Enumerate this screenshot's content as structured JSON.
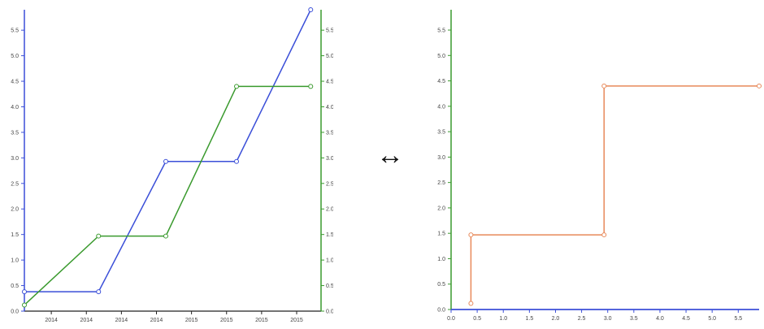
{
  "page": {
    "arrow_glyph": "↔"
  },
  "chart_data": [
    {
      "type": "line",
      "x_ticks": [
        "2014",
        "2014",
        "2014",
        "2014",
        "2015",
        "2015",
        "2015",
        "2015"
      ],
      "y_left": {
        "ylim": [
          0,
          5.9
        ],
        "ticks": [
          "0.0",
          "0.5",
          "1.0",
          "1.5",
          "2.0",
          "2.5",
          "3.0",
          "3.5",
          "4.0",
          "4.5",
          "5.0",
          "5.5"
        ],
        "color": "#3b4fd8"
      },
      "y_right": {
        "ylim": [
          0,
          5.9
        ],
        "ticks": [
          "0.0",
          "0.5",
          "1.0",
          "1.5",
          "2.0",
          "2.5",
          "3.0",
          "3.5",
          "4.0",
          "4.5",
          "5.0",
          "5.5"
        ],
        "color": "#3a9a2e"
      },
      "x_range": [
        0,
        8.6
      ],
      "grid": false,
      "series": [
        {
          "color": "#3b4fd8",
          "axis": "left",
          "points": [
            [
              0,
              0.38
            ],
            [
              2.15,
              0.38
            ],
            [
              4.1,
              2.93
            ],
            [
              6.15,
              2.93
            ],
            [
              8.3,
              5.9
            ]
          ]
        },
        {
          "color": "#3a9a2e",
          "axis": "right",
          "points": [
            [
              0,
              0.12
            ],
            [
              2.15,
              1.47
            ],
            [
              4.1,
              1.47
            ],
            [
              6.15,
              4.4
            ],
            [
              8.3,
              4.4
            ]
          ]
        }
      ]
    },
    {
      "type": "line",
      "step": true,
      "xlim": [
        0,
        5.9
      ],
      "ylim": [
        0,
        5.9
      ],
      "x_ticks": [
        "0.0",
        "0.5",
        "1.0",
        "1.5",
        "2.0",
        "2.5",
        "3.0",
        "3.5",
        "4.0",
        "4.5",
        "5.0",
        "5.5"
      ],
      "y_ticks": [
        "0.0",
        "0.5",
        "1.0",
        "1.5",
        "2.0",
        "2.5",
        "3.0",
        "3.5",
        "4.0",
        "4.5",
        "5.0",
        "5.5"
      ],
      "x_axis_color": "#3b4fd8",
      "y_axis_color": "#3a9a2e",
      "grid": false,
      "series": [
        {
          "color": "#e8895a",
          "points": [
            [
              0.38,
              0.12
            ],
            [
              0.38,
              1.47
            ],
            [
              2.93,
              1.47
            ],
            [
              2.93,
              4.4
            ],
            [
              5.9,
              4.4
            ]
          ]
        }
      ]
    }
  ]
}
